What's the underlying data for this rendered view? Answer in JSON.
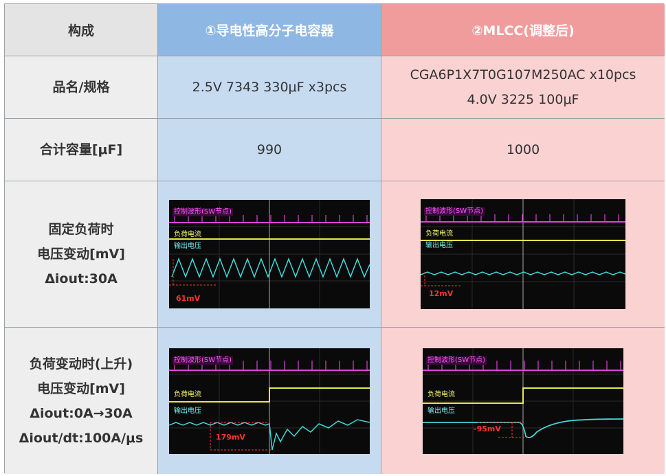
{
  "header": {
    "col_label": "构成",
    "col1": "①导电性高分子电容器",
    "col2": "②MLCC(调整后)"
  },
  "rows": {
    "spec": {
      "label": "品名/规格",
      "col1": "2.5V 7343 330μF x3pcs",
      "col2_line1": "CGA6P1X7T0G107M250AC x10pcs",
      "col2_line2": "4.0V 3225 100μF"
    },
    "capacity": {
      "label": "合计容量[μF]",
      "col1": "990",
      "col2": "1000"
    },
    "fixed_load": {
      "label_line1": "固定负荷时",
      "label_line2": "电压变动[mV]",
      "label_line3": "Δiout:30A"
    },
    "load_step": {
      "label_line1": "负荷变动时(上升)",
      "label_line2": "电压变动[mV]",
      "label_line3": "Δiout:0A→30A",
      "label_line4": "Δiout/dt:100A/μs"
    }
  },
  "scope_labels": {
    "control": "控制波形(SW节点)",
    "current": "负荷电流",
    "voltage": "输出电压"
  },
  "measurements": {
    "fixed_col1": "61mV",
    "fixed_col2": "12mV",
    "step_col1": "179mV",
    "step_col2": "-95mV"
  },
  "colors": {
    "header_blue": "#8eb8e3",
    "header_red": "#f19c9c",
    "cell_blue": "#c6daf0",
    "cell_red": "#fbd2d2",
    "trace_sw": "#e040e0",
    "trace_current": "#e8e84a",
    "trace_voltage": "#40d8d8",
    "marker": "#ff3333"
  }
}
